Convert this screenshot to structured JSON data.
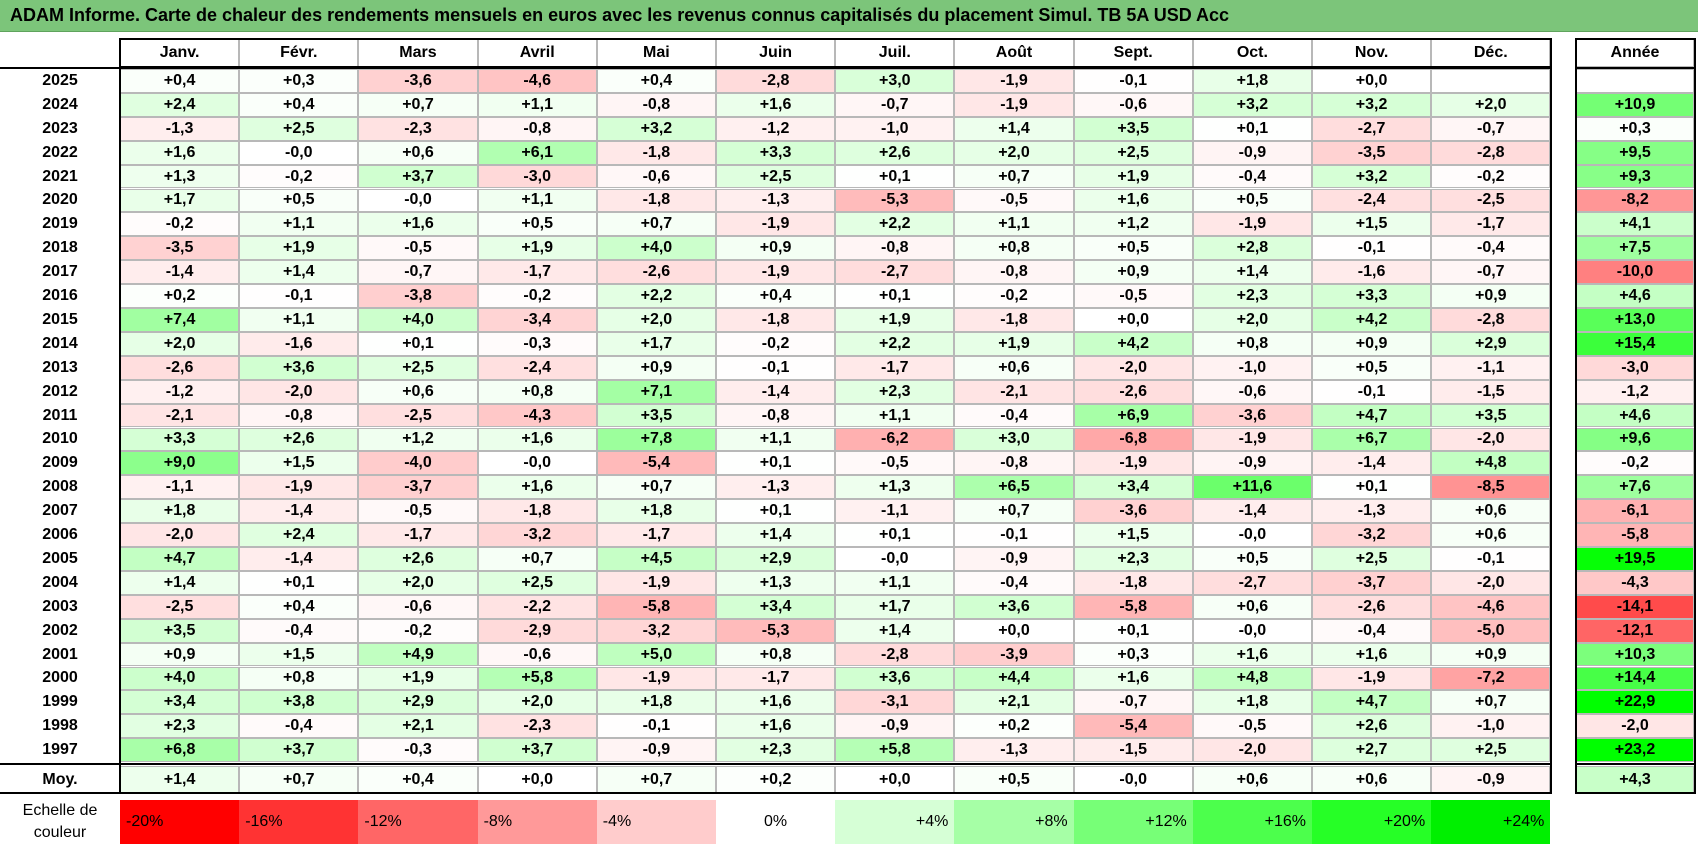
{
  "chart_data": {
    "type": "heatmap",
    "title": "ADAM Informe. Carte de chaleur des rendements mensuels en euros avec les revenus connus capitalisés du placement Simul. TB 5A USD Acc",
    "columns": [
      "Janv.",
      "Févr.",
      "Mars",
      "Avril",
      "Mai",
      "Juin",
      "Juil.",
      "Août",
      "Sept.",
      "Oct.",
      "Nov.",
      "Déc."
    ],
    "annual_header": "Année",
    "rows": [
      {
        "year": "2025",
        "values": [
          "+0,4",
          "+0,3",
          "-3,6",
          "-4,6",
          "+0,4",
          "-2,8",
          "+3,0",
          "-1,9",
          "-0,1",
          "+1,8",
          "+0,0",
          ""
        ],
        "annual": ""
      },
      {
        "year": "2024",
        "values": [
          "+2,4",
          "+0,4",
          "+0,7",
          "+1,1",
          "-0,8",
          "+1,6",
          "-0,7",
          "-1,9",
          "-0,6",
          "+3,2",
          "+3,2",
          "+2,0"
        ],
        "annual": "+10,9"
      },
      {
        "year": "2023",
        "values": [
          "-1,3",
          "+2,5",
          "-2,3",
          "-0,8",
          "+3,2",
          "-1,2",
          "-1,0",
          "+1,4",
          "+3,5",
          "+0,1",
          "-2,7",
          "-0,7"
        ],
        "annual": "+0,3"
      },
      {
        "year": "2022",
        "values": [
          "+1,6",
          "-0,0",
          "+0,6",
          "+6,1",
          "-1,8",
          "+3,3",
          "+2,6",
          "+2,0",
          "+2,5",
          "-0,9",
          "-3,5",
          "-2,8"
        ],
        "annual": "+9,5"
      },
      {
        "year": "2021",
        "values": [
          "+1,3",
          "-0,2",
          "+3,7",
          "-3,0",
          "-0,6",
          "+2,5",
          "+0,1",
          "+0,7",
          "+1,9",
          "-0,4",
          "+3,2",
          "-0,2"
        ],
        "annual": "+9,3"
      },
      {
        "year": "2020",
        "values": [
          "+1,7",
          "+0,5",
          "-0,0",
          "+1,1",
          "-1,8",
          "-1,3",
          "-5,3",
          "-0,5",
          "+1,6",
          "+0,5",
          "-2,4",
          "-2,5"
        ],
        "annual": "-8,2"
      },
      {
        "year": "2019",
        "values": [
          "-0,2",
          "+1,1",
          "+1,6",
          "+0,5",
          "+0,7",
          "-1,9",
          "+2,2",
          "+1,1",
          "+1,2",
          "-1,9",
          "+1,5",
          "-1,7"
        ],
        "annual": "+4,1"
      },
      {
        "year": "2018",
        "values": [
          "-3,5",
          "+1,9",
          "-0,5",
          "+1,9",
          "+4,0",
          "+0,9",
          "-0,8",
          "+0,8",
          "+0,5",
          "+2,8",
          "-0,1",
          "-0,4"
        ],
        "annual": "+7,5"
      },
      {
        "year": "2017",
        "values": [
          "-1,4",
          "+1,4",
          "-0,7",
          "-1,7",
          "-2,6",
          "-1,9",
          "-2,7",
          "-0,8",
          "+0,9",
          "+1,4",
          "-1,6",
          "-0,7"
        ],
        "annual": "-10,0"
      },
      {
        "year": "2016",
        "values": [
          "+0,2",
          "-0,1",
          "-3,8",
          "-0,2",
          "+2,2",
          "+0,4",
          "+0,1",
          "-0,2",
          "-0,5",
          "+2,3",
          "+3,3",
          "+0,9"
        ],
        "annual": "+4,6"
      },
      {
        "year": "2015",
        "values": [
          "+7,4",
          "+1,1",
          "+4,0",
          "-3,4",
          "+2,0",
          "-1,8",
          "+1,9",
          "-1,8",
          "+0,0",
          "+2,0",
          "+4,2",
          "-2,8"
        ],
        "annual": "+13,0"
      },
      {
        "year": "2014",
        "values": [
          "+2,0",
          "-1,6",
          "+0,1",
          "-0,3",
          "+1,7",
          "-0,2",
          "+2,2",
          "+1,9",
          "+4,2",
          "+0,8",
          "+0,9",
          "+2,9"
        ],
        "annual": "+15,4"
      },
      {
        "year": "2013",
        "values": [
          "-2,6",
          "+3,6",
          "+2,5",
          "-2,4",
          "+0,9",
          "-0,1",
          "-1,7",
          "+0,6",
          "-2,0",
          "-1,0",
          "+0,5",
          "-1,1"
        ],
        "annual": "-3,0"
      },
      {
        "year": "2012",
        "values": [
          "-1,2",
          "-2,0",
          "+0,6",
          "+0,8",
          "+7,1",
          "-1,4",
          "+2,3",
          "-2,1",
          "-2,6",
          "-0,6",
          "-0,1",
          "-1,5"
        ],
        "annual": "-1,2"
      },
      {
        "year": "2011",
        "values": [
          "-2,1",
          "-0,8",
          "-2,5",
          "-4,3",
          "+3,5",
          "-0,8",
          "+1,1",
          "-0,4",
          "+6,9",
          "-3,6",
          "+4,7",
          "+3,5"
        ],
        "annual": "+4,6"
      },
      {
        "year": "2010",
        "values": [
          "+3,3",
          "+2,6",
          "+1,2",
          "+1,6",
          "+7,8",
          "+1,1",
          "-6,2",
          "+3,0",
          "-6,8",
          "-1,9",
          "+6,7",
          "-2,0"
        ],
        "annual": "+9,6"
      },
      {
        "year": "2009",
        "values": [
          "+9,0",
          "+1,5",
          "-4,0",
          "-0,0",
          "-5,4",
          "+0,1",
          "-0,5",
          "-0,8",
          "-1,9",
          "-0,9",
          "-1,4",
          "+4,8"
        ],
        "annual": "-0,2"
      },
      {
        "year": "2008",
        "values": [
          "-1,1",
          "-1,9",
          "-3,7",
          "+1,6",
          "+0,7",
          "-1,3",
          "+1,3",
          "+6,5",
          "+3,4",
          "+11,6",
          "+0,1",
          "-8,5"
        ],
        "annual": "+7,6"
      },
      {
        "year": "2007",
        "values": [
          "+1,8",
          "-1,4",
          "-0,5",
          "-1,8",
          "+1,8",
          "+0,1",
          "-1,1",
          "+0,7",
          "-3,6",
          "-1,4",
          "-1,3",
          "+0,6"
        ],
        "annual": "-6,1"
      },
      {
        "year": "2006",
        "values": [
          "-2,0",
          "+2,4",
          "-1,7",
          "-3,2",
          "-1,7",
          "+1,4",
          "+0,1",
          "-0,1",
          "+1,5",
          "-0,0",
          "-3,2",
          "+0,6"
        ],
        "annual": "-5,8"
      },
      {
        "year": "2005",
        "values": [
          "+4,7",
          "-1,4",
          "+2,6",
          "+0,7",
          "+4,5",
          "+2,9",
          "-0,0",
          "-0,9",
          "+2,3",
          "+0,5",
          "+2,5",
          "-0,1"
        ],
        "annual": "+19,5"
      },
      {
        "year": "2004",
        "values": [
          "+1,4",
          "+0,1",
          "+2,0",
          "+2,5",
          "-1,9",
          "+1,3",
          "+1,1",
          "-0,4",
          "-1,8",
          "-2,7",
          "-3,7",
          "-2,0"
        ],
        "annual": "-4,3"
      },
      {
        "year": "2003",
        "values": [
          "-2,5",
          "+0,4",
          "-0,6",
          "-2,2",
          "-5,8",
          "+3,4",
          "+1,7",
          "+3,6",
          "-5,8",
          "+0,6",
          "-2,6",
          "-4,6"
        ],
        "annual": "-14,1"
      },
      {
        "year": "2002",
        "values": [
          "+3,5",
          "-0,4",
          "-0,2",
          "-2,9",
          "-3,2",
          "-5,3",
          "+1,4",
          "+0,0",
          "+0,1",
          "-0,0",
          "-0,4",
          "-5,0"
        ],
        "annual": "-12,1"
      },
      {
        "year": "2001",
        "values": [
          "+0,9",
          "+1,5",
          "+4,9",
          "-0,6",
          "+5,0",
          "+0,8",
          "-2,8",
          "-3,9",
          "+0,3",
          "+1,6",
          "+1,6",
          "+0,9"
        ],
        "annual": "+10,3"
      },
      {
        "year": "2000",
        "values": [
          "+4,0",
          "+0,8",
          "+1,9",
          "+5,8",
          "-1,9",
          "-1,7",
          "+3,6",
          "+4,4",
          "+1,6",
          "+4,8",
          "-1,9",
          "-7,2"
        ],
        "annual": "+14,4"
      },
      {
        "year": "1999",
        "values": [
          "+3,4",
          "+3,8",
          "+2,9",
          "+2,0",
          "+1,8",
          "+1,6",
          "-3,1",
          "+2,1",
          "-0,7",
          "+1,8",
          "+4,7",
          "+0,7"
        ],
        "annual": "+22,9"
      },
      {
        "year": "1998",
        "values": [
          "+2,3",
          "-0,4",
          "+2,1",
          "-2,3",
          "-0,1",
          "+1,6",
          "-0,9",
          "+0,2",
          "-5,4",
          "-0,5",
          "+2,6",
          "-1,0"
        ],
        "annual": "-2,0"
      },
      {
        "year": "1997",
        "values": [
          "+6,8",
          "+3,7",
          "-0,3",
          "+3,7",
          "-0,9",
          "+2,3",
          "+5,8",
          "-1,3",
          "-1,5",
          "-2,0",
          "+2,7",
          "+2,5"
        ],
        "annual": "+23,2"
      }
    ],
    "average": {
      "label": "Moy.",
      "values": [
        "+1,4",
        "+0,7",
        "+0,4",
        "+0,0",
        "+0,7",
        "+0,2",
        "+0,0",
        "+0,5",
        "-0,0",
        "+0,6",
        "+0,6",
        "-0,9"
      ],
      "annual": "+4,3"
    },
    "scale": {
      "label": "Echelle de couleur",
      "stops": [
        {
          "label": "-20%",
          "value": -20,
          "color": "#ff0000"
        },
        {
          "label": "-16%",
          "value": -16,
          "color": "#ff3333"
        },
        {
          "label": "-12%",
          "value": -12,
          "color": "#ff6666"
        },
        {
          "label": "-8%",
          "value": -8,
          "color": "#ff9999"
        },
        {
          "label": "-4%",
          "value": -4,
          "color": "#ffcccc"
        },
        {
          "label": "0%",
          "value": 0,
          "color": "#ffffff"
        },
        {
          "label": "+4%",
          "value": 4,
          "color": "#d6ffd6"
        },
        {
          "label": "+8%",
          "value": 8,
          "color": "#a6ffa6"
        },
        {
          "label": "+12%",
          "value": 12,
          "color": "#77ff77"
        },
        {
          "label": "+16%",
          "value": 16,
          "color": "#4cff4c"
        },
        {
          "label": "+20%",
          "value": 20,
          "color": "#26ff26"
        },
        {
          "label": "+24%",
          "value": 24,
          "color": "#00f000"
        }
      ]
    }
  }
}
